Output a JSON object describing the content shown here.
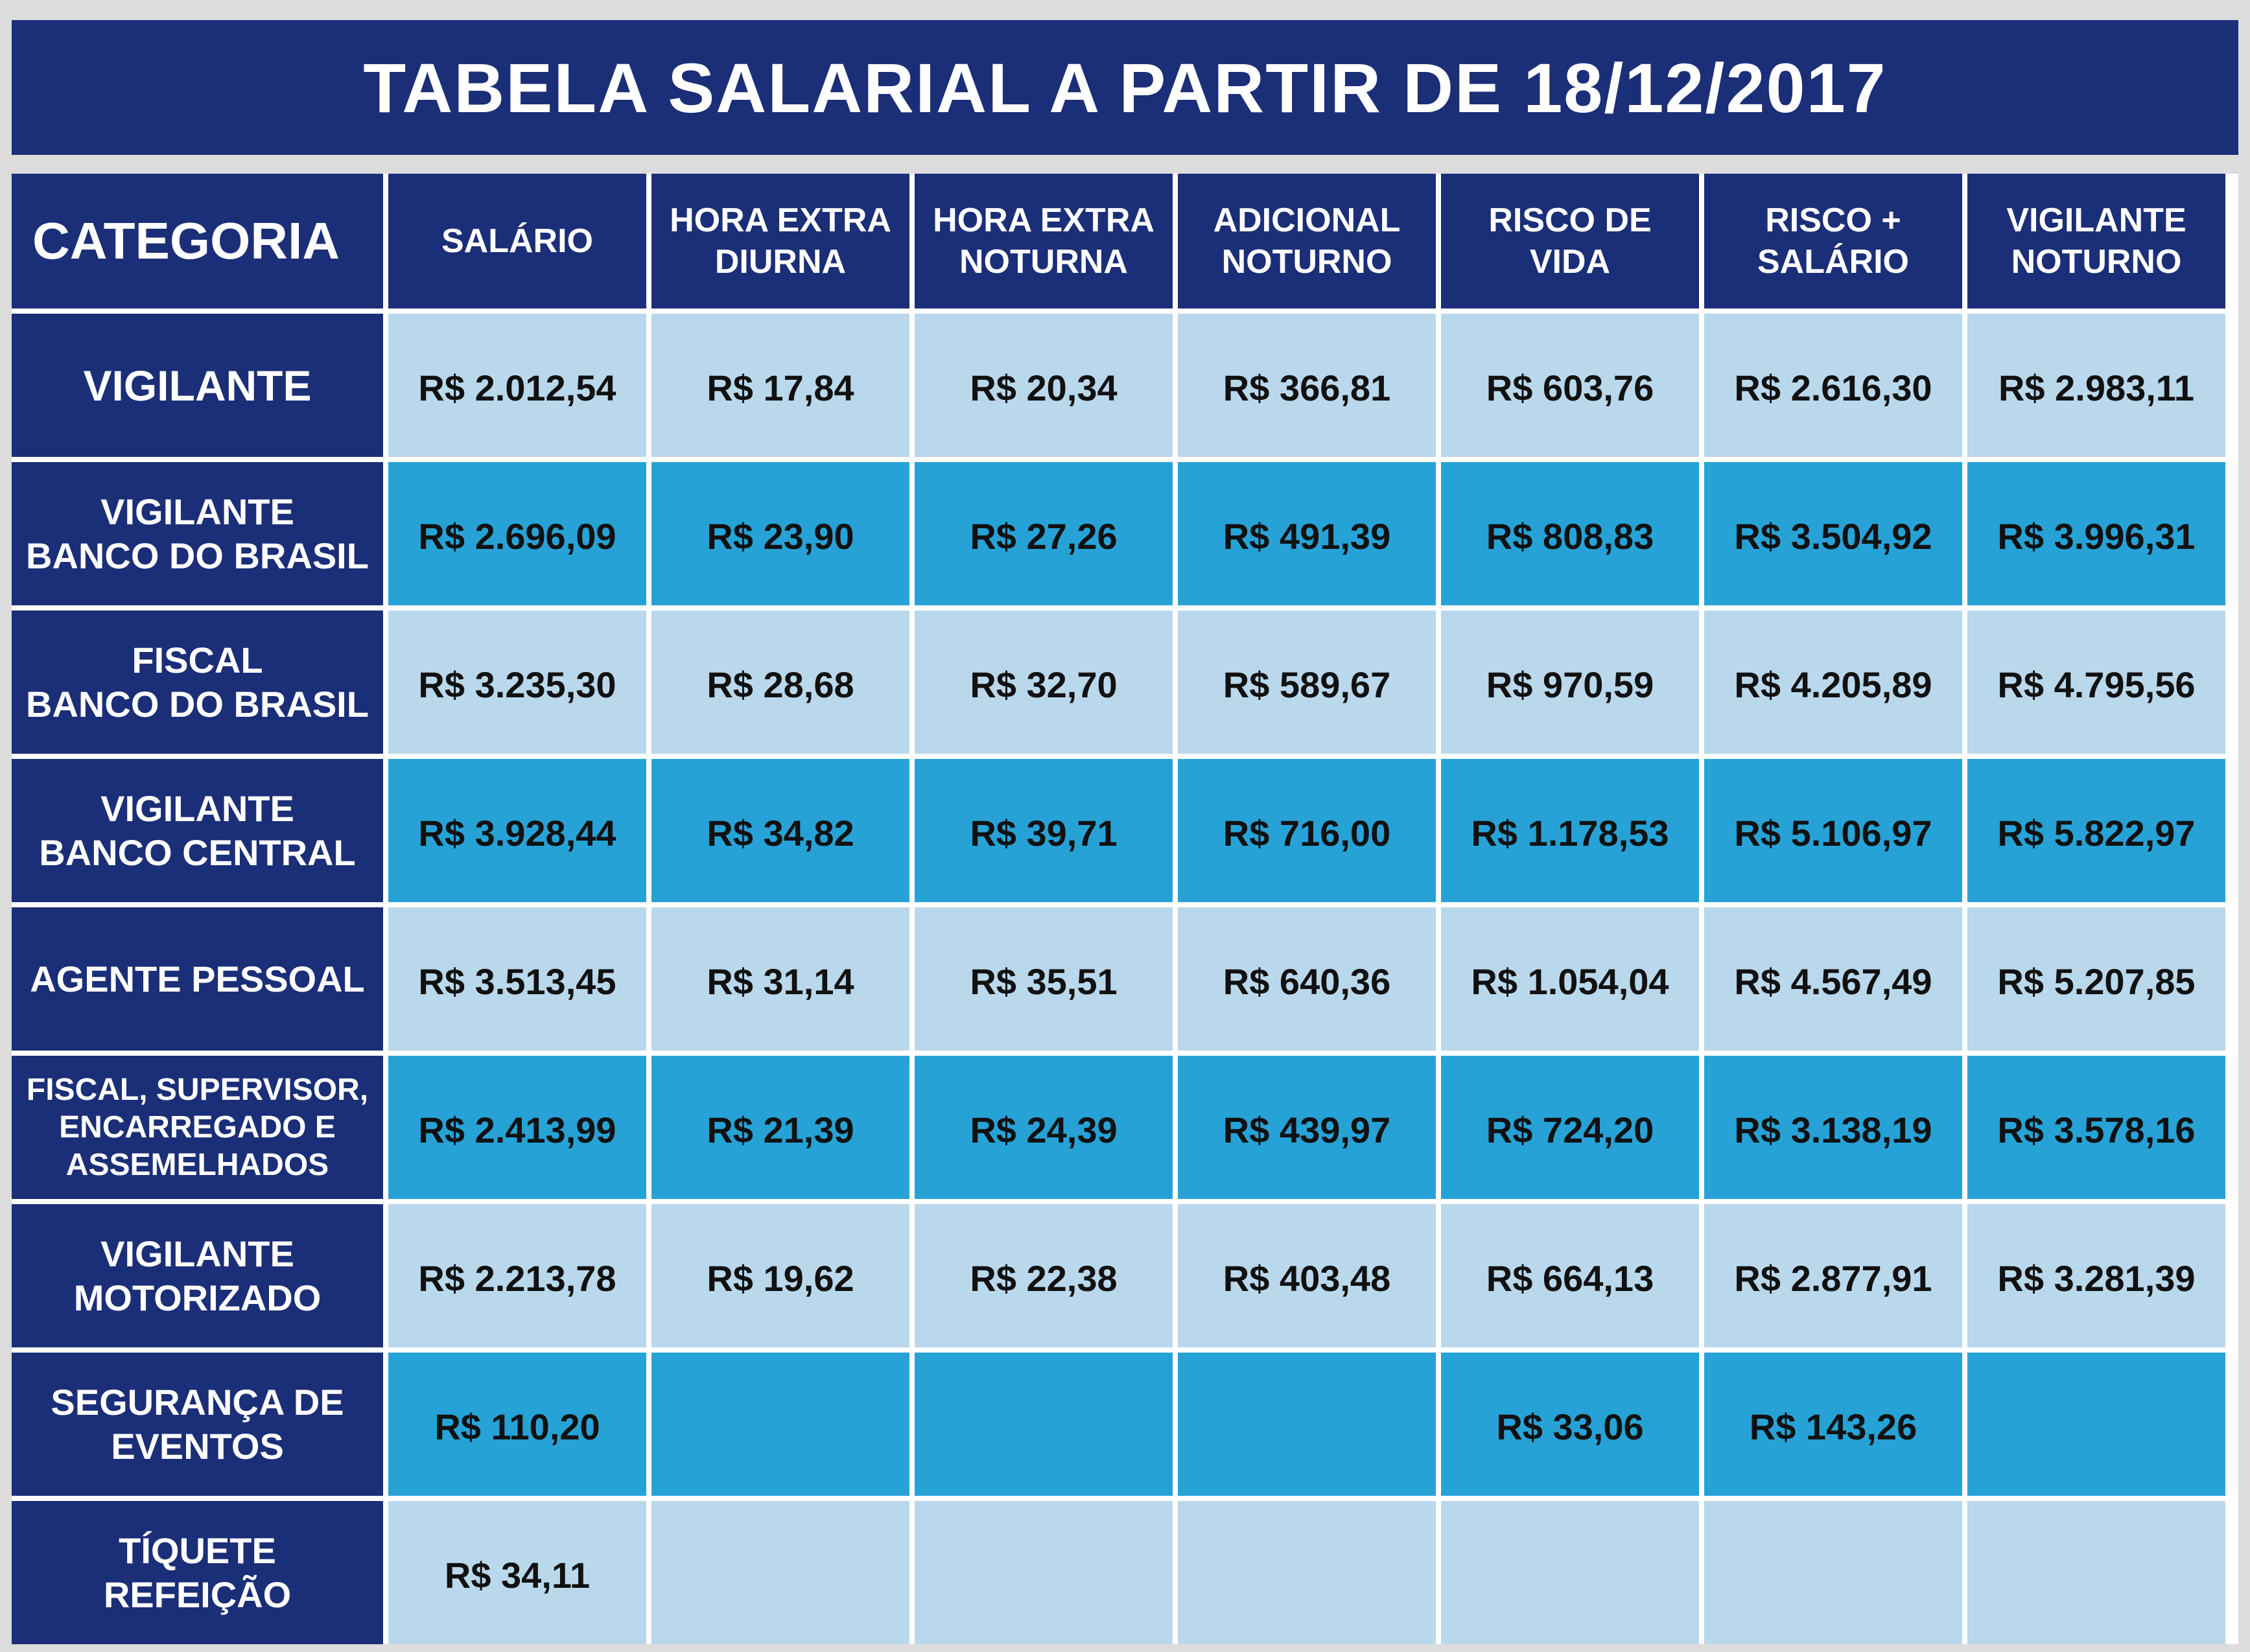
{
  "title": "TABELA SALARIAL A PARTIR DE 18/12/2017",
  "colors": {
    "header_bg": "#1b2e78",
    "row_light": "#bad8ec",
    "row_mid": "#27a2d6",
    "frame": "#dcdcdc"
  },
  "header": {
    "category": "CATEGORIA",
    "columns": [
      "SALÁRIO",
      "HORA EXTRA\nDIURNA",
      "HORA EXTRA\nNOTURNA",
      "ADICIONAL\nNOTURNO",
      "RISCO DE\nVIDA",
      "RISCO +\nSALÁRIO",
      "VIGILANTE\nNOTURNO"
    ]
  },
  "rows": [
    {
      "label": "VIGILANTE",
      "values": [
        "R$ 2.012,54",
        "R$ 17,84",
        "R$ 20,34",
        "R$ 366,81",
        "R$ 603,76",
        "R$ 2.616,30",
        "R$ 2.983,11"
      ]
    },
    {
      "label": "VIGILANTE\nBANCO DO BRASIL",
      "values": [
        "R$ 2.696,09",
        "R$ 23,90",
        "R$ 27,26",
        "R$ 491,39",
        "R$ 808,83",
        "R$ 3.504,92",
        "R$ 3.996,31"
      ]
    },
    {
      "label": "FISCAL\nBANCO DO BRASIL",
      "values": [
        "R$ 3.235,30",
        "R$ 28,68",
        "R$ 32,70",
        "R$ 589,67",
        "R$ 970,59",
        "R$ 4.205,89",
        "R$ 4.795,56"
      ]
    },
    {
      "label": "VIGILANTE\nBANCO CENTRAL",
      "values": [
        "R$ 3.928,44",
        "R$ 34,82",
        "R$ 39,71",
        "R$ 716,00",
        "R$ 1.178,53",
        "R$ 5.106,97",
        "R$ 5.822,97"
      ]
    },
    {
      "label": "AGENTE PESSOAL",
      "values": [
        "R$ 3.513,45",
        "R$ 31,14",
        "R$ 35,51",
        "R$ 640,36",
        "R$ 1.054,04",
        "R$ 4.567,49",
        "R$ 5.207,85"
      ]
    },
    {
      "label": "FISCAL, SUPERVISOR,\nENCARREGADO E\nASSEMELHADOS",
      "values": [
        "R$ 2.413,99",
        "R$ 21,39",
        "R$ 24,39",
        "R$ 439,97",
        "R$ 724,20",
        "R$ 3.138,19",
        "R$ 3.578,16"
      ]
    },
    {
      "label": "VIGILANTE\nMOTORIZADO",
      "values": [
        "R$ 2.213,78",
        "R$ 19,62",
        "R$ 22,38",
        "R$ 403,48",
        "R$ 664,13",
        "R$ 2.877,91",
        "R$ 3.281,39"
      ]
    },
    {
      "label": "SEGURANÇA DE\nEVENTOS",
      "values": [
        "R$ 110,20",
        "",
        "",
        "",
        "R$ 33,06",
        "R$ 143,26",
        ""
      ]
    },
    {
      "label": "TÍQUETE\nREFEIÇÃO",
      "values": [
        "R$ 34,11",
        "",
        "",
        "",
        "",
        "",
        ""
      ]
    }
  ]
}
